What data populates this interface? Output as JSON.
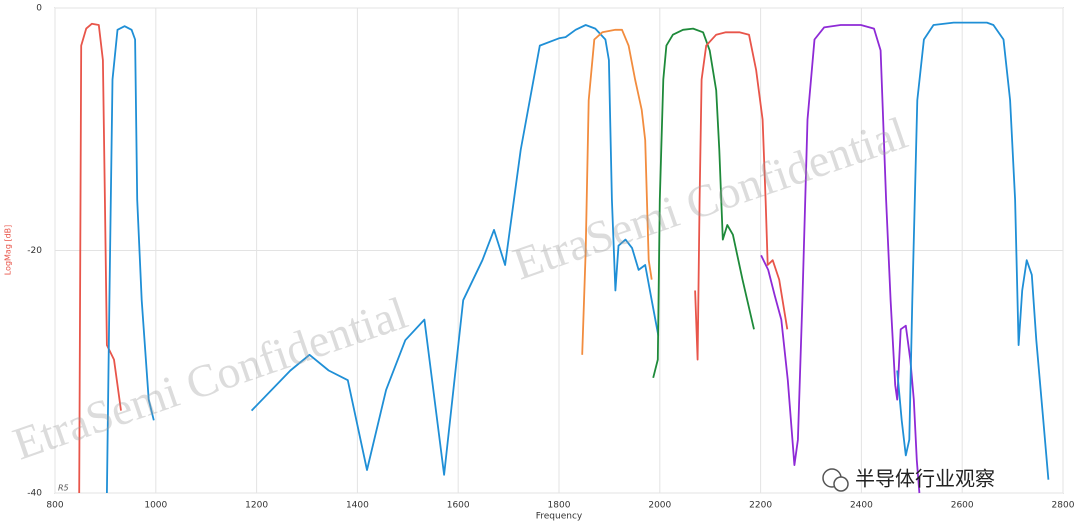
{
  "chart_data": {
    "type": "line",
    "x_label": "Frequency",
    "y_label": "LogMag [dB]",
    "xlim": [
      800,
      2800
    ],
    "xticks": [
      800,
      1000,
      1200,
      1400,
      1600,
      1800,
      2000,
      2200,
      2400,
      2600,
      2800
    ],
    "ylim": [
      -40,
      0
    ],
    "yticks": [
      -40,
      -20,
      0
    ],
    "grid": true,
    "trace_label": "R5",
    "watermarks": [
      "EtraSemi Confidential",
      "EtraSemi Confidential"
    ],
    "source": "半导体行业观察",
    "series": [
      {
        "color": "#e8554a",
        "x": [
          848,
          852,
          862,
          873,
          887,
          895,
          899,
          903,
          917,
          931
        ],
        "values": [
          -40,
          -3.1,
          -1.7,
          -1.3,
          -1.4,
          -4.3,
          -15.8,
          -27.8,
          -29,
          -33.2
        ]
      },
      {
        "color": "#1f8fd6",
        "x": [
          903,
          908,
          914,
          924,
          938,
          952,
          959,
          963,
          972,
          986,
          996
        ],
        "values": [
          -40,
          -24.1,
          -5.9,
          -1.8,
          -1.5,
          -1.8,
          -2.6,
          -15.8,
          -24.1,
          -32.3,
          -34
        ]
      },
      {
        "color": "#1f8fd6",
        "x": [
          1190,
          1267,
          1305,
          1343,
          1381,
          1419,
          1457,
          1495,
          1533,
          1572,
          1610,
          1648,
          1671,
          1693,
          1724,
          1762,
          1800,
          1813,
          1833,
          1853,
          1872,
          1892,
          1899,
          1905,
          1912,
          1918,
          1932,
          1945,
          1958,
          1971,
          1984,
          1997
        ],
        "values": [
          -33.2,
          -29.9,
          -28.6,
          -29.9,
          -30.7,
          -38.1,
          -31.5,
          -27.4,
          -25.7,
          -38.5,
          -24.1,
          -20.8,
          -18.3,
          -21.2,
          -11.7,
          -3.1,
          -2.5,
          -2.4,
          -1.8,
          -1.4,
          -1.7,
          -2.6,
          -4.3,
          -15.8,
          -23.3,
          -19.6,
          -19.1,
          -19.8,
          -21.6,
          -21.2,
          -24.1,
          -27
        ]
      },
      {
        "color": "#f28c3e",
        "x": [
          1846,
          1853,
          1859,
          1870,
          1886,
          1912,
          1925,
          1938,
          1951,
          1964,
          1971,
          1978,
          1984
        ],
        "values": [
          -28.6,
          -20,
          -7.6,
          -2.6,
          -2,
          -1.8,
          -1.8,
          -3.1,
          -5.9,
          -8.4,
          -10.9,
          -20.8,
          -22.4
        ]
      },
      {
        "color": "#1e8a3a",
        "x": [
          1987,
          1996,
          2000,
          2007,
          2013,
          2026,
          2046,
          2066,
          2086,
          2099,
          2112,
          2118,
          2125,
          2134,
          2145,
          2164,
          2187
        ],
        "values": [
          -30.5,
          -29,
          -15.8,
          -5.9,
          -3.1,
          -2.2,
          -1.8,
          -1.7,
          -2,
          -3.5,
          -6.8,
          -11.7,
          -19.1,
          -17.9,
          -18.7,
          -22.4,
          -26.5
        ]
      },
      {
        "color": "#e8554a",
        "x": [
          2070,
          2075,
          2079,
          2083,
          2092,
          2112,
          2131,
          2158,
          2177,
          2191,
          2204,
          2210,
          2214,
          2224,
          2237,
          2253
        ],
        "values": [
          -23.3,
          -29,
          -15.8,
          -5.9,
          -3.1,
          -2.2,
          -2,
          -2,
          -2.2,
          -5.1,
          -9.2,
          -15.8,
          -21.2,
          -20.8,
          -22.4,
          -26.5
        ]
      },
      {
        "color": "#8e2ad6",
        "x": [
          2201,
          2215,
          2228,
          2241,
          2254,
          2267,
          2274,
          2283,
          2293,
          2307,
          2326,
          2359,
          2399,
          2425,
          2438,
          2449,
          2458,
          2467,
          2471,
          2478,
          2488,
          2497,
          2504,
          2510,
          2515
        ],
        "values": [
          -20.4,
          -21.6,
          -23.7,
          -25.7,
          -30.7,
          -37.7,
          -35.6,
          -24.1,
          -9.2,
          -2.6,
          -1.6,
          -1.4,
          -1.4,
          -1.7,
          -3.5,
          -15.8,
          -24.1,
          -31.1,
          -32.3,
          -26.5,
          -26.2,
          -29,
          -32.3,
          -37.3,
          -40
        ]
      },
      {
        "color": "#1f8fd6",
        "x": [
          2471,
          2480,
          2488,
          2495,
          2501,
          2511,
          2524,
          2543,
          2583,
          2649,
          2662,
          2682,
          2695,
          2705,
          2712,
          2719,
          2728,
          2738,
          2747,
          2761,
          2771
        ],
        "values": [
          -29.9,
          -34,
          -36.9,
          -35.6,
          -24.1,
          -7.6,
          -2.6,
          -1.4,
          -1.2,
          -1.2,
          -1.4,
          -2.6,
          -7.6,
          -15.8,
          -27.8,
          -23.3,
          -20.8,
          -22,
          -27.4,
          -34,
          -38.9
        ]
      }
    ]
  }
}
